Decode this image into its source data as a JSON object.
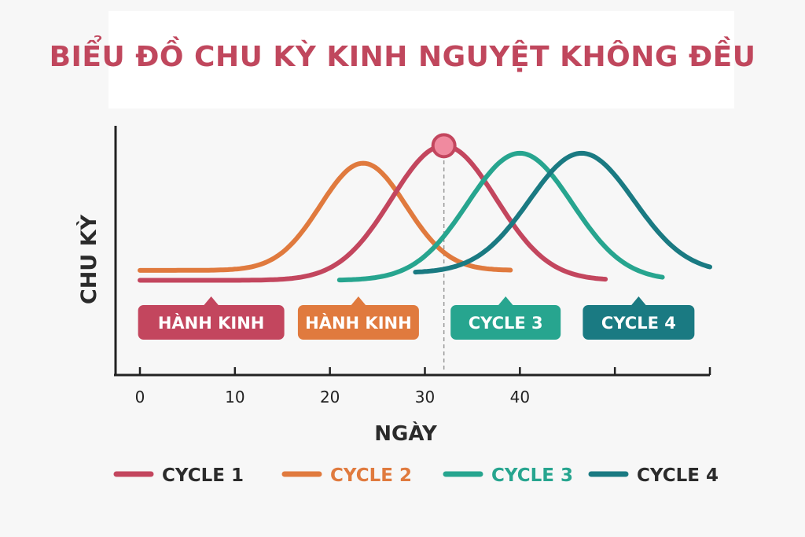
{
  "chart_data": {
    "type": "line",
    "title": "BIỂU ĐỒ CHU KỲ KINH NGUYỆT KHÔNG ĐỀU",
    "xlabel": "NGÀY",
    "ylabel": "CHU KỲ",
    "xlim": [
      0,
      60
    ],
    "ylim": [
      0,
      100
    ],
    "x_ticks": [
      0,
      10,
      20,
      30,
      40
    ],
    "x_tick_labels": [
      "0",
      "10",
      "20",
      "30",
      "40"
    ],
    "marked_x": 32,
    "series": [
      {
        "name": "CYCLE 1",
        "color": "#c3465e",
        "x_start": 0,
        "x_end": 49,
        "baseline": 38,
        "peak": 92,
        "center": 32,
        "width": 5.5
      },
      {
        "name": "CYCLE 2",
        "color": "#e07a3e",
        "x_start": 0,
        "x_end": 39,
        "baseline": 42,
        "peak": 85,
        "center": 23.5,
        "width": 4.5
      },
      {
        "name": "CYCLE 3",
        "color": "#27a58f",
        "x_start": 21,
        "x_end": 55,
        "baseline": 38,
        "peak": 89,
        "center": 40,
        "width": 5.5
      },
      {
        "name": "CYCLE 4",
        "color": "#1a7a82",
        "x_start": 29,
        "x_end": 60,
        "baseline": 41,
        "peak": 89,
        "center": 46.5,
        "width": 5.5
      }
    ],
    "badges": [
      {
        "label": "HÀNH KINH",
        "color": "#c3465e",
        "center": 7.5
      },
      {
        "label": "HÀNH KINH",
        "color": "#e07a3e",
        "center": 23
      },
      {
        "label": "CYCLE 3",
        "color": "#27a58f",
        "center": 38.5
      },
      {
        "label": "CYCLE 4",
        "color": "#1a7a82",
        "center": 52.5
      }
    ],
    "legend": {
      "position": "bottom",
      "items": [
        {
          "label": "CYCLE 1",
          "color": "#c3465e"
        },
        {
          "label": "CYCLE 2",
          "color": "#e07a3e"
        },
        {
          "label": "CYCLE 3",
          "color": "#27a58f"
        },
        {
          "label": "CYCLE 4",
          "color": "#1a7a82"
        }
      ]
    },
    "grid": false
  }
}
